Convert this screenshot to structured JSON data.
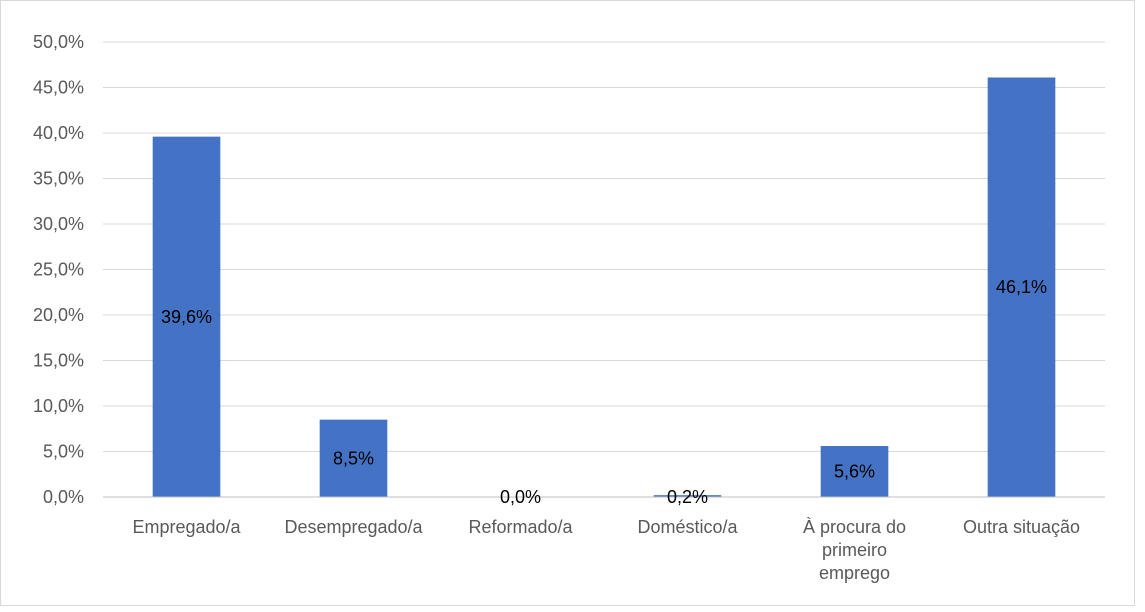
{
  "chart_data": {
    "type": "bar",
    "categories": [
      [
        "Empregado/a"
      ],
      [
        "Desempregado/a"
      ],
      [
        "Reformado/a"
      ],
      [
        "Doméstico/a"
      ],
      [
        "À procura do",
        "primeiro",
        "emprego"
      ],
      [
        "Outra situação"
      ]
    ],
    "values": [
      39.6,
      8.5,
      0.0,
      0.2,
      5.6,
      46.1
    ],
    "data_labels": [
      "39,6%",
      "8,5%",
      "0,0%",
      "0,2%",
      "5,6%",
      "46,1%"
    ],
    "y_ticks": [
      "0,0%",
      "5,0%",
      "10,0%",
      "15,0%",
      "20,0%",
      "25,0%",
      "30,0%",
      "35,0%",
      "40,0%",
      "45,0%",
      "50,0%"
    ],
    "ylim": [
      0,
      50
    ],
    "title": "",
    "xlabel": "",
    "ylabel": "",
    "grid": true,
    "legend": "none",
    "colors": {
      "bar": "#4472C4",
      "grid": "#d9d9d9",
      "axis": "#bfbfbf"
    }
  }
}
